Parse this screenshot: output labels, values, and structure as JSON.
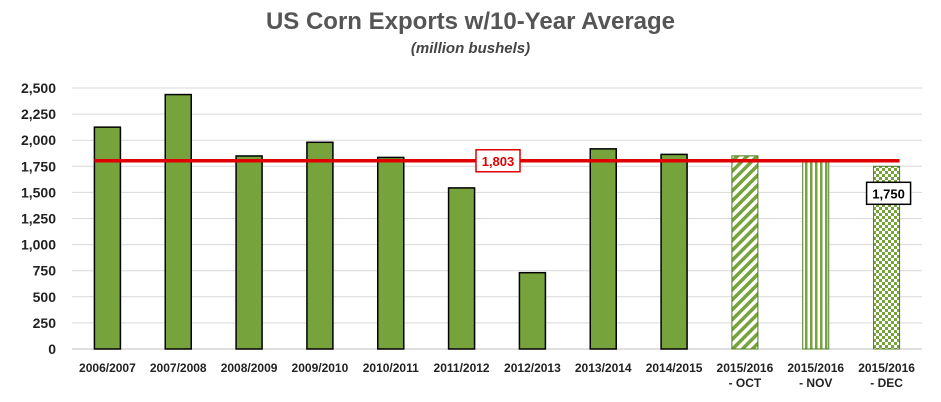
{
  "chart_data": {
    "type": "bar",
    "title": "US Corn Exports w/10-Year Average",
    "subtitle": "(million bushels)",
    "categories": [
      [
        "2006/2007"
      ],
      [
        "2007/2008"
      ],
      [
        "2008/2009"
      ],
      [
        "2009/2010"
      ],
      [
        "2010/2011"
      ],
      [
        "2011/2012"
      ],
      [
        "2012/2013"
      ],
      [
        "2013/2014"
      ],
      [
        "2014/2015"
      ],
      [
        "2015/2016",
        "- OCT"
      ],
      [
        "2015/2016",
        "- NOV"
      ],
      [
        "2015/2016",
        "- DEC"
      ]
    ],
    "values": [
      2125,
      2437,
      1849,
      1980,
      1835,
      1543,
      731,
      1917,
      1864,
      1850,
      1800,
      1750
    ],
    "bar_patterns": [
      "solid",
      "solid",
      "solid",
      "solid",
      "solid",
      "solid",
      "solid",
      "solid",
      "solid",
      "diagonal",
      "vertical",
      "checker"
    ],
    "ylim": [
      0,
      2500
    ],
    "yticks": [
      "0",
      "250",
      "500",
      "750",
      "1,000",
      "1,250",
      "1,500",
      "1,750",
      "2,000",
      "2,250",
      "2,500"
    ],
    "grid": true,
    "average_line": {
      "value": 1803,
      "label": "1,803",
      "color": "#e00000"
    },
    "last_bar_label": "1,750",
    "colors": {
      "bar": "#77a33c",
      "bar_outline": "#000000",
      "grid": "#d9d9d9"
    }
  }
}
